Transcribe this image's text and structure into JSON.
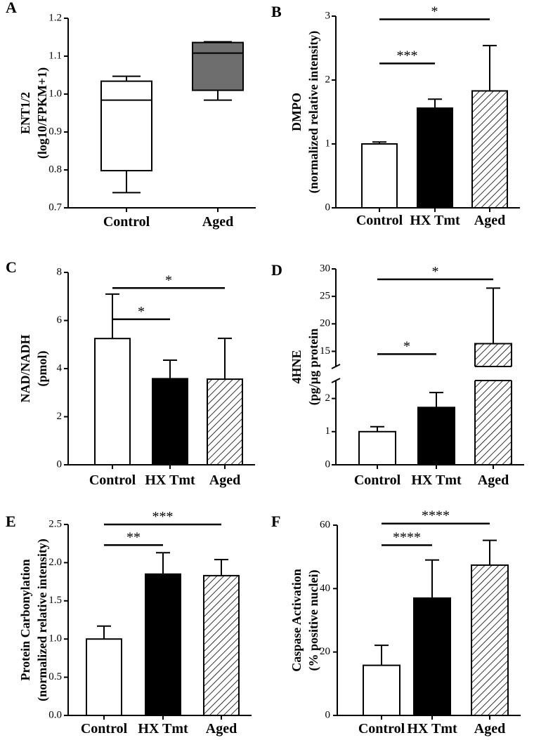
{
  "chart_data": [
    {
      "panel": "A",
      "type": "box",
      "ylabel_lines": [
        "ENT1/2",
        "(log10/FPKM+1)"
      ],
      "ylim": [
        0.7,
        1.2
      ],
      "yticks": [
        "0.7",
        "0.8",
        "0.9",
        "1.0",
        "1.1",
        "1.2"
      ],
      "categories": [
        "Control",
        "Aged"
      ],
      "boxes": [
        {
          "name": "Control",
          "min": 0.74,
          "q1": 0.798,
          "median": 0.984,
          "q3": 1.034,
          "max": 1.047,
          "fill": "#ffffff"
        },
        {
          "name": "Aged",
          "min": 0.984,
          "q1": 1.01,
          "median": 1.108,
          "q3": 1.136,
          "max": 1.138,
          "fill": "#6e6e6e"
        }
      ],
      "significance": []
    },
    {
      "panel": "B",
      "type": "bar",
      "ylabel_lines": [
        "DMPO",
        "(normalized relative intensity)"
      ],
      "ylim": [
        0,
        3
      ],
      "yticks": [
        "0",
        "1",
        "2",
        "3"
      ],
      "categories": [
        "Control",
        "HX Tmt",
        "Aged"
      ],
      "values": [
        1.0,
        1.56,
        1.83
      ],
      "errors": [
        0.03,
        0.14,
        0.71
      ],
      "fills": [
        "white",
        "black",
        "hatch"
      ],
      "significance": [
        {
          "from": 0,
          "to": 1,
          "label": "***",
          "y": 2.26
        },
        {
          "from": 0,
          "to": 2,
          "label": "*",
          "y": 2.95
        }
      ]
    },
    {
      "panel": "C",
      "type": "bar",
      "ylabel_lines": [
        "NAD/NADH",
        "(pmol)"
      ],
      "ylim": [
        0,
        8
      ],
      "yticks": [
        "0",
        "2",
        "4",
        "6",
        "8"
      ],
      "categories": [
        "Control",
        "HX Tmt",
        "Aged"
      ],
      "values": [
        5.25,
        3.58,
        3.56
      ],
      "errors": [
        1.85,
        0.77,
        1.7
      ],
      "fills": [
        "white",
        "black",
        "hatch"
      ],
      "significance": [
        {
          "from": 0,
          "to": 1,
          "label": "*",
          "y": 6.05
        },
        {
          "from": 0,
          "to": 2,
          "label": "*",
          "y": 7.35
        }
      ]
    },
    {
      "panel": "D",
      "type": "bar",
      "axis_break": true,
      "ylabel_lines": [
        "4HNE",
        "(pg/µg protein"
      ],
      "ylim": [
        0,
        30
      ],
      "yticks": [
        "0",
        "1",
        "2",
        "15",
        "20",
        "25",
        "30"
      ],
      "categories": [
        "Control",
        "HX Tmt",
        "Aged"
      ],
      "values": [
        1.0,
        1.73,
        16.4
      ],
      "errors": [
        0.15,
        0.45,
        10.1
      ],
      "fills": [
        "white",
        "black",
        "hatch"
      ],
      "significance": [
        {
          "from": 0,
          "to": 1,
          "label": "*",
          "y": 14.5
        },
        {
          "from": 0,
          "to": 2,
          "label": "*",
          "y": 28.1
        }
      ]
    },
    {
      "panel": "E",
      "type": "bar",
      "ylabel_lines": [
        "Protein Carbonylation",
        "(normalized relative intensity)"
      ],
      "ylim": [
        0,
        2.5
      ],
      "yticks": [
        "0.0",
        "0.5",
        "1.0",
        "1.5",
        "2.0",
        "2.5"
      ],
      "categories": [
        "Control",
        "HX Tmt",
        "Aged"
      ],
      "values": [
        1.0,
        1.85,
        1.83
      ],
      "errors": [
        0.17,
        0.28,
        0.21
      ],
      "fills": [
        "white",
        "black",
        "hatch"
      ],
      "significance": [
        {
          "from": 0,
          "to": 1,
          "label": "**",
          "y": 2.23
        },
        {
          "from": 0,
          "to": 2,
          "label": "***",
          "y": 2.5
        }
      ]
    },
    {
      "panel": "F",
      "type": "bar",
      "ylabel_lines": [
        "Caspase Activation",
        "(% positive nuclei)"
      ],
      "ylim": [
        0,
        60
      ],
      "yticks": [
        "0",
        "20",
        "40",
        "60"
      ],
      "categories": [
        "Control",
        "HX Tmt",
        "Aged"
      ],
      "values": [
        15.8,
        37.0,
        47.4
      ],
      "errors": [
        6.3,
        12.0,
        7.8
      ],
      "fills": [
        "white",
        "black",
        "hatch"
      ],
      "significance": [
        {
          "from": 0,
          "to": 1,
          "label": "****",
          "y": 53.7
        },
        {
          "from": 0,
          "to": 2,
          "label": "****",
          "y": 60.5
        }
      ]
    }
  ]
}
